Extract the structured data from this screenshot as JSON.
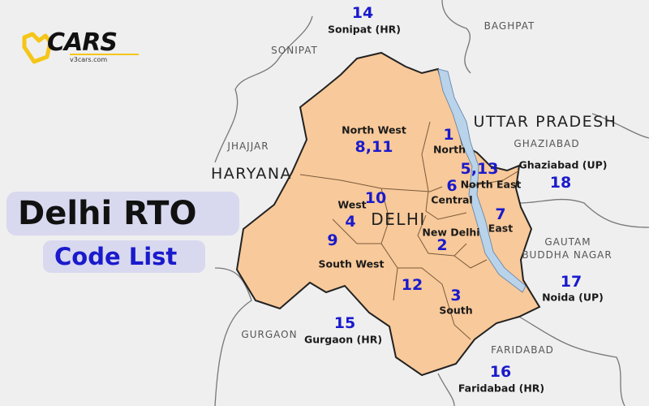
{
  "logo": {
    "brand": "CARS",
    "url_text": "v3cars.com",
    "accent": "#f5c518"
  },
  "title": "Delhi RTO",
  "subtitle": "Code List",
  "colors": {
    "delhi_fill": "#f8c99a",
    "river": "#b9d3ea",
    "code": "#1a1acc",
    "background": "#efefef"
  },
  "state_labels": {
    "haryana": "HARYANA",
    "uttar_pradesh": "UTTAR PRADESH",
    "delhi": "DELHI"
  },
  "region_labels": {
    "sonipat": "SONIPAT",
    "baghpat": "BAGHPAT",
    "jhajjar": "JHAJJAR",
    "ghaziabad": "GHAZIABAD",
    "gautam": "GAUTAM",
    "buddha_nagar": "BUDDHA NAGAR",
    "gurgaon": "GURGAON",
    "faridabad": "FARIDABAD"
  },
  "districts": [
    {
      "name": "North West",
      "code": "8,11"
    },
    {
      "name": "North",
      "code": "1"
    },
    {
      "name": "North East",
      "code": "5,13"
    },
    {
      "name": "Central",
      "code": "6"
    },
    {
      "name": "West",
      "code": "10"
    },
    {
      "name": "",
      "code": "4"
    },
    {
      "name": "",
      "code": "9"
    },
    {
      "name": "East",
      "code": "7"
    },
    {
      "name": "New Delhi",
      "code": "2"
    },
    {
      "name": "South West",
      "code": ""
    },
    {
      "name": "",
      "code": "12"
    },
    {
      "name": "South",
      "code": "3"
    }
  ],
  "neighbours": [
    {
      "name": "Sonipat (HR)",
      "code": "14"
    },
    {
      "name": "Ghaziabad (UP)",
      "code": "18"
    },
    {
      "name": "Noida (UP)",
      "code": "17"
    },
    {
      "name": "Gurgaon (HR)",
      "code": "15"
    },
    {
      "name": "Faridabad (HR)",
      "code": "16"
    }
  ]
}
